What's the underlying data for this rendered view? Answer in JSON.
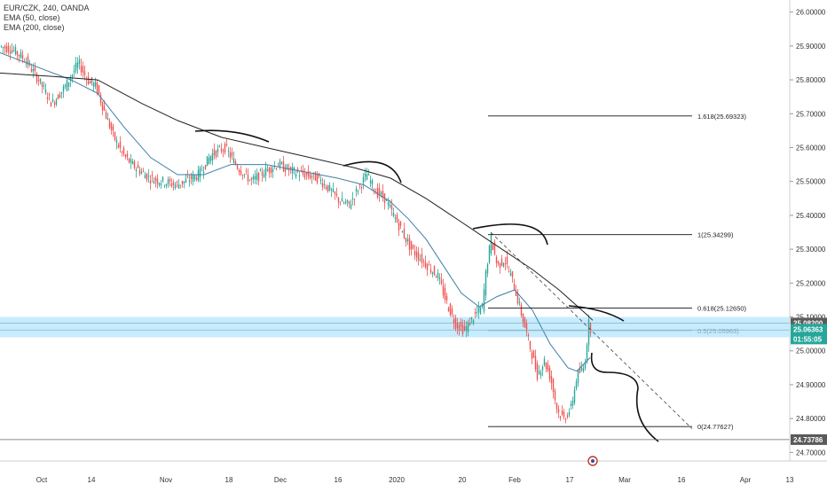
{
  "legend": {
    "symbol_line": "EUR/CZK, 240, OANDA",
    "ema50_label": "EMA (50, close)",
    "ema200_label": "EMA (200, close)"
  },
  "colors": {
    "candle_up": "#26a69a",
    "candle_down": "#ef5350",
    "ema50": "#3f7fa6",
    "ema200": "#222222",
    "zone": "#b3e5fc",
    "price_badge": "#26a69a",
    "ref_badge": "#5a5a5a"
  },
  "chart_data": {
    "type": "candlestick",
    "symbol": "EUR/CZK",
    "timeframe": "240",
    "ylim": [
      24.68,
      26.02
    ],
    "y_ticks": [
      "26.00000",
      "25.90000",
      "25.80000",
      "25.70000",
      "25.60000",
      "25.50000",
      "25.40000",
      "25.30000",
      "25.20000",
      "25.10000",
      "25.00000",
      "24.90000",
      "24.80000",
      "24.70000"
    ],
    "x_ticks": [
      "Oct",
      "14",
      "Nov",
      "18",
      "Dec",
      "16",
      "2020",
      "20",
      "Feb",
      "17",
      "Mar",
      "16",
      "Apr",
      "13"
    ],
    "price_path": [
      [
        0,
        25.9
      ],
      [
        15,
        25.89
      ],
      [
        30,
        25.86
      ],
      [
        45,
        25.8
      ],
      [
        60,
        25.73
      ],
      [
        75,
        25.78
      ],
      [
        90,
        25.85
      ],
      [
        100,
        25.8
      ],
      [
        110,
        25.78
      ],
      [
        120,
        25.7
      ],
      [
        130,
        25.63
      ],
      [
        140,
        25.58
      ],
      [
        150,
        25.55
      ],
      [
        160,
        25.53
      ],
      [
        170,
        25.51
      ],
      [
        185,
        25.5
      ],
      [
        200,
        25.49
      ],
      [
        210,
        25.5
      ],
      [
        225,
        25.52
      ],
      [
        240,
        25.58
      ],
      [
        255,
        25.6
      ],
      [
        270,
        25.54
      ],
      [
        285,
        25.5
      ],
      [
        300,
        25.53
      ],
      [
        315,
        25.55
      ],
      [
        330,
        25.53
      ],
      [
        345,
        25.52
      ],
      [
        360,
        25.51
      ],
      [
        375,
        25.47
      ],
      [
        385,
        25.44
      ],
      [
        395,
        25.43
      ],
      [
        405,
        25.48
      ],
      [
        415,
        25.52
      ],
      [
        425,
        25.47
      ],
      [
        435,
        25.45
      ],
      [
        445,
        25.4
      ],
      [
        455,
        25.35
      ],
      [
        465,
        25.3
      ],
      [
        480,
        25.26
      ],
      [
        495,
        25.22
      ],
      [
        505,
        25.14
      ],
      [
        515,
        25.08
      ],
      [
        525,
        25.06
      ],
      [
        535,
        25.1
      ],
      [
        545,
        25.13
      ],
      [
        550,
        25.25
      ],
      [
        555,
        25.33
      ],
      [
        562,
        25.25
      ],
      [
        570,
        25.27
      ],
      [
        580,
        25.2
      ],
      [
        590,
        25.1
      ],
      [
        600,
        25.0
      ],
      [
        607,
        24.93
      ],
      [
        615,
        24.97
      ],
      [
        622,
        24.92
      ],
      [
        630,
        24.82
      ],
      [
        637,
        24.8
      ],
      [
        645,
        24.83
      ],
      [
        652,
        24.93
      ],
      [
        660,
        24.95
      ],
      [
        665,
        25.08
      ],
      [
        668,
        25.06
      ]
    ],
    "ema50": [
      [
        0,
        25.88
      ],
      [
        40,
        25.84
      ],
      [
        80,
        25.8
      ],
      [
        110,
        25.76
      ],
      [
        140,
        25.66
      ],
      [
        170,
        25.57
      ],
      [
        200,
        25.52
      ],
      [
        230,
        25.52
      ],
      [
        260,
        25.55
      ],
      [
        300,
        25.55
      ],
      [
        340,
        25.53
      ],
      [
        380,
        25.51
      ],
      [
        410,
        25.49
      ],
      [
        440,
        25.44
      ],
      [
        460,
        25.39
      ],
      [
        480,
        25.33
      ],
      [
        500,
        25.25
      ],
      [
        520,
        25.17
      ],
      [
        540,
        25.13
      ],
      [
        560,
        25.16
      ],
      [
        580,
        25.18
      ],
      [
        600,
        25.12
      ],
      [
        620,
        25.02
      ],
      [
        640,
        24.95
      ],
      [
        650,
        24.94
      ],
      [
        665,
        24.98
      ]
    ],
    "ema200": [
      [
        0,
        25.82
      ],
      [
        60,
        25.81
      ],
      [
        110,
        25.8
      ],
      [
        160,
        25.73
      ],
      [
        200,
        25.68
      ],
      [
        250,
        25.63
      ],
      [
        300,
        25.6
      ],
      [
        350,
        25.57
      ],
      [
        400,
        25.54
      ],
      [
        440,
        25.51
      ],
      [
        480,
        25.45
      ],
      [
        520,
        25.38
      ],
      [
        560,
        25.31
      ],
      [
        600,
        25.24
      ],
      [
        630,
        25.18
      ],
      [
        660,
        25.11
      ],
      [
        668,
        25.09
      ]
    ],
    "fibonacci": [
      {
        "label": "1.618(25.69323)",
        "value": 25.69323
      },
      {
        "label": "1(25.34299)",
        "value": 25.34299
      },
      {
        "label": "0.618(25.12650)",
        "value": 25.1265
      },
      {
        "label": "0.5(25.05963)",
        "value": 25.05963
      },
      {
        "label": "0(24.77627)",
        "value": 24.77627
      }
    ],
    "support_zone": [
      25.04,
      25.1
    ],
    "zone_lines": [
      25.082,
      25.0615
    ],
    "price_labels": [
      {
        "text": "25.08200",
        "value": 25.082,
        "kind": "ref"
      },
      {
        "text": "25.06363",
        "value": 25.06363,
        "kind": "price"
      },
      {
        "text": "01:55:05",
        "value": 25.035,
        "kind": "price"
      },
      {
        "text": "24.73786",
        "value": 24.73786,
        "kind": "ref"
      }
    ],
    "trendline": [
      [
        553,
        25.35
      ],
      [
        780,
        24.77
      ]
    ],
    "horizontal_line": 24.73786
  }
}
